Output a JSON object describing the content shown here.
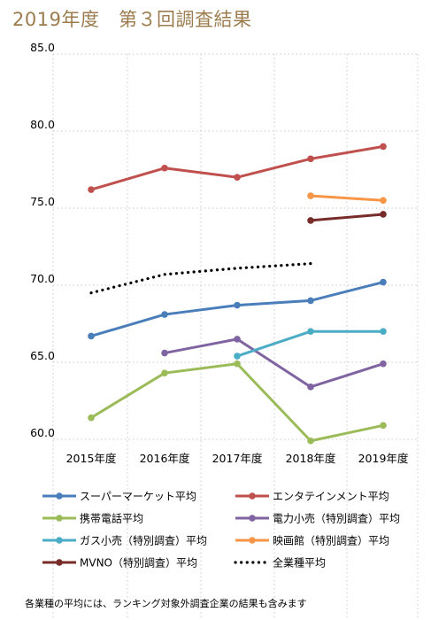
{
  "page": {
    "title": "2019年度　第３回調査結果",
    "footnote": "各業種の平均には、ランキング対象外調査企業の結果も含みます"
  },
  "chart_data": {
    "type": "line",
    "categories": [
      "2015年度",
      "2016年度",
      "2017年度",
      "2018年度",
      "2019年度"
    ],
    "ylim": [
      60,
      85
    ],
    "yticks": [
      60,
      65,
      70,
      75,
      80,
      85
    ],
    "ytick_labels": [
      "60.0",
      "65.0",
      "70.0",
      "75.0",
      "80.0",
      "85.0"
    ],
    "grid": {
      "horizontal": "dotted",
      "vertical": "dotted"
    },
    "legend_position": "bottom",
    "series": [
      {
        "name": "スーパーマーケット平均",
        "color": "#4a7ebb",
        "style": "solid",
        "marker": true,
        "values": [
          66.7,
          68.1,
          68.7,
          69.0,
          70.2
        ]
      },
      {
        "name": "エンタテインメント平均",
        "color": "#c0504d",
        "style": "solid",
        "marker": true,
        "values": [
          76.2,
          77.6,
          77.0,
          78.2,
          79.0
        ]
      },
      {
        "name": "携帯電話平均",
        "color": "#9bbb59",
        "style": "solid",
        "marker": true,
        "values": [
          61.4,
          64.3,
          64.9,
          59.9,
          60.9
        ]
      },
      {
        "name": "電力小売（特別調査）平均",
        "color": "#8064a2",
        "style": "solid",
        "marker": true,
        "values": [
          null,
          65.6,
          66.5,
          63.4,
          64.9
        ]
      },
      {
        "name": "ガス小売（特別調査）平均",
        "color": "#4bacc6",
        "style": "solid",
        "marker": true,
        "values": [
          null,
          null,
          65.4,
          67.0,
          67.0
        ]
      },
      {
        "name": "映画館（特別調査）平均",
        "color": "#f79646",
        "style": "solid",
        "marker": true,
        "values": [
          null,
          null,
          null,
          75.8,
          75.5
        ]
      },
      {
        "name": "MVNO（特別調査）平均",
        "color": "#772c2a",
        "style": "solid",
        "marker": true,
        "values": [
          null,
          null,
          null,
          74.2,
          74.6
        ]
      },
      {
        "name": "全業種平均",
        "color": "#000000",
        "style": "dotted",
        "marker": false,
        "values": [
          69.5,
          70.7,
          71.1,
          71.4,
          null
        ]
      }
    ]
  }
}
